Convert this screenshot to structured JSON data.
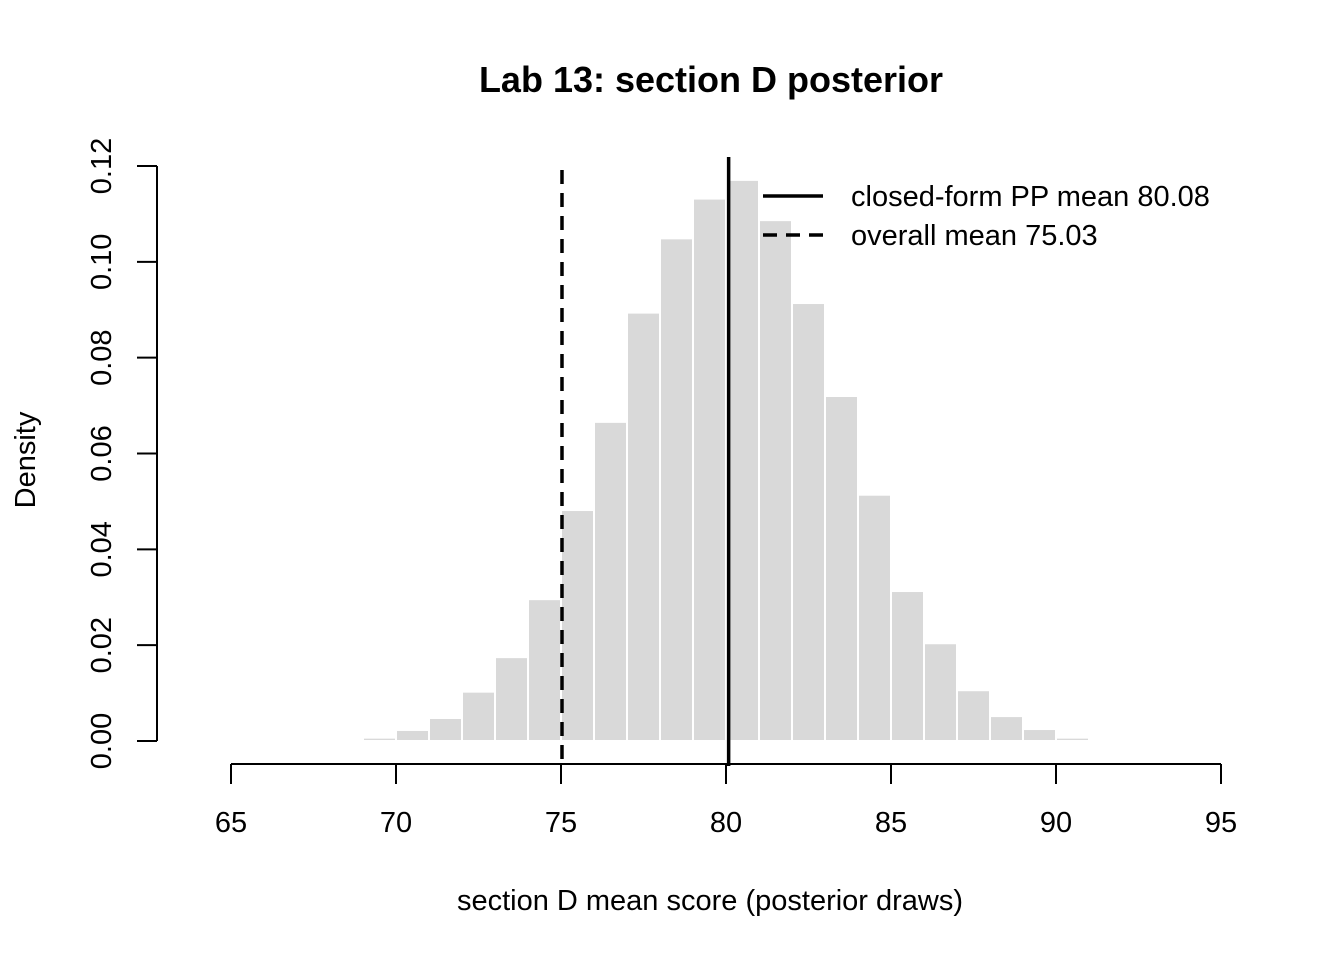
{
  "chart_data": {
    "type": "bar",
    "subtype": "histogram",
    "title": "Lab 13: section D posterior",
    "xlabel": "section D mean score (posterior draws)",
    "ylabel": "Density",
    "xlim": [
      65,
      95
    ],
    "ylim": [
      0,
      0.12
    ],
    "x_ticks": [
      "65",
      "70",
      "75",
      "80",
      "85",
      "90",
      "95"
    ],
    "y_ticks": [
      "0.00",
      "0.02",
      "0.04",
      "0.06",
      "0.08",
      "0.10",
      "0.12"
    ],
    "bin_width": 1,
    "bin_starts": [
      69,
      70,
      71,
      72,
      73,
      74,
      75,
      76,
      77,
      78,
      79,
      80,
      81,
      82,
      83,
      84,
      85,
      86,
      87,
      88,
      89,
      90
    ],
    "values": [
      0.0007,
      0.0023,
      0.0048,
      0.0103,
      0.0175,
      0.0296,
      0.0482,
      0.0666,
      0.0894,
      0.1049,
      0.1132,
      0.1171,
      0.1087,
      0.0914,
      0.072,
      0.0514,
      0.0313,
      0.0204,
      0.0106,
      0.0052,
      0.0025,
      0.0007
    ],
    "bar_color": "#d9d9d9",
    "bar_border_color": "#ffffff",
    "vlines": [
      {
        "x": 80.08,
        "style": "solid",
        "label": "closed-form PP mean 80.08"
      },
      {
        "x": 75.03,
        "style": "dashed",
        "label": "overall mean 75.03"
      }
    ],
    "legend_placement": "top-right",
    "grid": false
  }
}
